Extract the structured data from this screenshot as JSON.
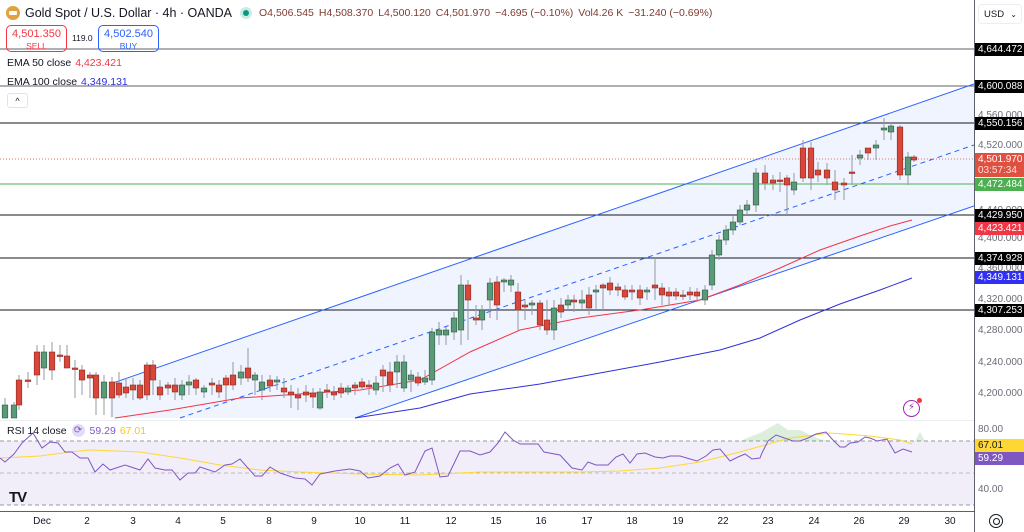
{
  "header": {
    "symbol": "Gold Spot / U.S. Dollar · 4h · OANDA",
    "open": "O4,506.545",
    "high": "H4,508.370",
    "low": "L4,500.120",
    "close": "C4,501.970",
    "change": "−4.695 (−0.10%)",
    "volume": "Vol4.26 K",
    "vol_change": "−31.240 (−0.69%)"
  },
  "trade": {
    "sell_price": "4,501.350",
    "sell_label": "SELL",
    "spread": "119.0",
    "buy_price": "4,502.540",
    "buy_label": "BUY"
  },
  "indicators": {
    "ema50_label": "EMA 50 close",
    "ema50_value": "4,423.421",
    "ema100_label": "EMA 100 close",
    "ema100_value": "4,349.131",
    "collapse_icon": "^"
  },
  "price_axis": {
    "currency": "USD",
    "ticks": [
      "4,560.000",
      "4,520.000",
      "4,440.000",
      "4,400.000",
      "4,360.000",
      "4,320.000",
      "4,280.000",
      "4,240.000",
      "4,200.000"
    ],
    "tags": {
      "level1": "4,644.472",
      "level2": "4,600.088",
      "level3": "4,550.156",
      "last_price": "4,501.970",
      "countdown": "03:57:34",
      "green_level": "4,472.484",
      "level4": "4,429.950",
      "ema50": "4,423.421",
      "level5": "4,374.928",
      "ema100": "4,349.131",
      "level6": "4,307.253"
    }
  },
  "rsi": {
    "label": "RSI 14 close",
    "value": "59.29",
    "ma_value": "67.01",
    "ticks": [
      "80.00",
      "40.00"
    ]
  },
  "time_axis": {
    "labels": [
      "Dec",
      "2",
      "3",
      "4",
      "5",
      "8",
      "9",
      "10",
      "11",
      "12",
      "15",
      "16",
      "17",
      "18",
      "19",
      "22",
      "23",
      "24",
      "26",
      "29",
      "30"
    ]
  },
  "colors": {
    "up": "#5b9a78",
    "down": "#d9463a",
    "ema50": "#f23645",
    "ema100": "#2f2fd8",
    "channel": "#2962ff",
    "rsi": "#7e57c2",
    "rsi_ma": "#fdd835",
    "green_level": "#4caf50"
  },
  "chart_data": [
    {
      "type": "candlestick",
      "title": "Gold Spot / U.S. Dollar · 4h · OANDA",
      "xlabel": "",
      "ylabel": "USD",
      "x_ticks": [
        "Dec",
        "2",
        "3",
        "4",
        "5",
        "8",
        "9",
        "10",
        "11",
        "12",
        "15",
        "16",
        "17",
        "18",
        "19",
        "22",
        "23",
        "24",
        "26",
        "29",
        "30"
      ],
      "ylim": [
        4170,
        4680
      ],
      "last": {
        "open": 4506.545,
        "high": 4508.37,
        "low": 4500.12,
        "close": 4501.97
      },
      "horizontal_levels": [
        4644.472,
        4600.088,
        4550.156,
        4472.484,
        4429.95,
        4374.928,
        4307.253
      ],
      "series": [
        {
          "name": "EMA 50 close",
          "last": 4423.421
        },
        {
          "name": "EMA 100 close",
          "last": 4349.131
        }
      ],
      "annotations": [
        "Rising parallel channel with dashed midline"
      ]
    },
    {
      "type": "line",
      "title": "RSI 14 close",
      "ylim": [
        20,
        90
      ],
      "bands": [
        70,
        50,
        30
      ],
      "series": [
        {
          "name": "RSI 14",
          "last": 59.29
        },
        {
          "name": "RSI MA",
          "last": 67.01
        }
      ]
    }
  ]
}
